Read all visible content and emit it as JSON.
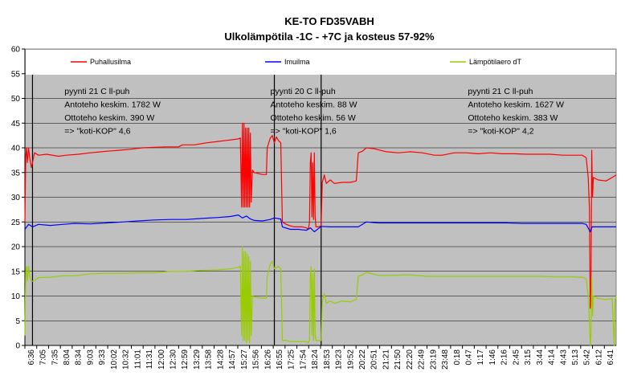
{
  "chart_data": {
    "type": "line",
    "title": "KE-TO FD35VABH",
    "subtitle": "Ulkolämpötila -1C - +7C ja kosteus 57-92%",
    "xlabel": "",
    "ylabel": "",
    "ylim": [
      0,
      60
    ],
    "yticks": [
      0,
      5,
      10,
      15,
      20,
      25,
      30,
      35,
      40,
      45,
      50,
      55,
      60
    ],
    "grid": true,
    "legend_placement": "top",
    "background": "#c0c0c0",
    "x_ticks": [
      "6:36",
      "7:05",
      "7:35",
      "8:04",
      "8:34",
      "9:03",
      "9:33",
      "10:02",
      "10:32",
      "11:01",
      "11:31",
      "12:00",
      "12:30",
      "12:59",
      "13:29",
      "13:58",
      "14:28",
      "14:57",
      "15:27",
      "15:56",
      "16:26",
      "16:55",
      "17:25",
      "17:54",
      "18:24",
      "18:53",
      "19:23",
      "19:52",
      "20:22",
      "20:51",
      "21:21",
      "21:50",
      "22:20",
      "22:49",
      "23:19",
      "23:48",
      "0:18",
      "0:47",
      "1:17",
      "1:46",
      "2:16",
      "2:45",
      "3:15",
      "3:44",
      "4:14",
      "4:43",
      "5:13",
      "5:42",
      "6:12",
      "6:41"
    ],
    "x_range_minutes": [
      396,
      1875
    ],
    "markers_minutes": [
      415,
      1020,
      1137
    ],
    "series": [
      {
        "name": "Puhallusilma",
        "color": "#ff0000",
        "points": [
          [
            396,
            25
          ],
          [
            398,
            38
          ],
          [
            400,
            40
          ],
          [
            402,
            37
          ],
          [
            405,
            40
          ],
          [
            408,
            38
          ],
          [
            412,
            36
          ],
          [
            415,
            37
          ],
          [
            420,
            39
          ],
          [
            430,
            38.5
          ],
          [
            450,
            38.7
          ],
          [
            480,
            38.3
          ],
          [
            500,
            38.5
          ],
          [
            530,
            38.7
          ],
          [
            560,
            39
          ],
          [
            600,
            39.3
          ],
          [
            630,
            39.5
          ],
          [
            660,
            39.7
          ],
          [
            690,
            40
          ],
          [
            720,
            40.1
          ],
          [
            750,
            40.2
          ],
          [
            780,
            40.2
          ],
          [
            790,
            40.6
          ],
          [
            820,
            40.6
          ],
          [
            850,
            41
          ],
          [
            880,
            41.3
          ],
          [
            900,
            41.5
          ],
          [
            930,
            41.8
          ],
          [
            935,
            42
          ],
          [
            938,
            28
          ],
          [
            940,
            45
          ],
          [
            942,
            28
          ],
          [
            944,
            45
          ],
          [
            946,
            28
          ],
          [
            948,
            44
          ],
          [
            950,
            28
          ],
          [
            952,
            44
          ],
          [
            954,
            28
          ],
          [
            956,
            44
          ],
          [
            958,
            28
          ],
          [
            960,
            43
          ],
          [
            962,
            29
          ],
          [
            965,
            35.5
          ],
          [
            970,
            35
          ],
          [
            980,
            34.8
          ],
          [
            990,
            34.6
          ],
          [
            1000,
            34.6
          ],
          [
            1002,
            40
          ],
          [
            1010,
            42
          ],
          [
            1015,
            42.5
          ],
          [
            1020,
            41
          ],
          [
            1025,
            42.2
          ],
          [
            1030,
            41.5
          ],
          [
            1036,
            41
          ],
          [
            1040,
            25
          ],
          [
            1050,
            24.5
          ],
          [
            1060,
            24.2
          ],
          [
            1070,
            24
          ],
          [
            1080,
            24
          ],
          [
            1090,
            24
          ],
          [
            1100,
            23.8
          ],
          [
            1105,
            23.5
          ],
          [
            1108,
            25
          ],
          [
            1110,
            37
          ],
          [
            1112,
            39
          ],
          [
            1114,
            26
          ],
          [
            1116,
            37
          ],
          [
            1118,
            25.5
          ],
          [
            1120,
            39
          ],
          [
            1122,
            26
          ],
          [
            1124,
            24
          ],
          [
            1130,
            24
          ],
          [
            1137,
            24.2
          ],
          [
            1140,
            33
          ],
          [
            1145,
            34.5
          ],
          [
            1150,
            32.8
          ],
          [
            1160,
            33.5
          ],
          [
            1170,
            32.8
          ],
          [
            1190,
            33
          ],
          [
            1210,
            33
          ],
          [
            1220,
            33.2
          ],
          [
            1225,
            33.3
          ],
          [
            1230,
            39
          ],
          [
            1240,
            39.3
          ],
          [
            1250,
            40
          ],
          [
            1270,
            39.8
          ],
          [
            1300,
            39.2
          ],
          [
            1330,
            39
          ],
          [
            1360,
            39.2
          ],
          [
            1390,
            39
          ],
          [
            1420,
            38.5
          ],
          [
            1440,
            38.5
          ],
          [
            1470,
            39
          ],
          [
            1500,
            39
          ],
          [
            1530,
            38.8
          ],
          [
            1560,
            39
          ],
          [
            1590,
            38.8
          ],
          [
            1620,
            38.8
          ],
          [
            1650,
            38.7
          ],
          [
            1680,
            38.7
          ],
          [
            1710,
            38.7
          ],
          [
            1740,
            38.5
          ],
          [
            1770,
            38.5
          ],
          [
            1790,
            38.5
          ],
          [
            1800,
            38
          ],
          [
            1805,
            34
          ],
          [
            1808,
            28
          ],
          [
            1810,
            7.5
          ],
          [
            1812,
            10
          ],
          [
            1814,
            39.5
          ],
          [
            1816,
            30
          ],
          [
            1818,
            34
          ],
          [
            1830,
            33.5
          ],
          [
            1850,
            33.3
          ],
          [
            1865,
            34
          ],
          [
            1875,
            34.5
          ]
        ]
      },
      {
        "name": "Imuilma",
        "color": "#0000ff",
        "points": [
          [
            396,
            23.5
          ],
          [
            405,
            24.5
          ],
          [
            415,
            24
          ],
          [
            430,
            24.5
          ],
          [
            460,
            24.3
          ],
          [
            490,
            24.5
          ],
          [
            520,
            24.7
          ],
          [
            560,
            24.6
          ],
          [
            600,
            24.8
          ],
          [
            640,
            25
          ],
          [
            680,
            25.2
          ],
          [
            720,
            25.4
          ],
          [
            760,
            25.5
          ],
          [
            800,
            25.5
          ],
          [
            840,
            25.7
          ],
          [
            880,
            25.9
          ],
          [
            910,
            26.1
          ],
          [
            930,
            26.4
          ],
          [
            940,
            25.8
          ],
          [
            950,
            26.2
          ],
          [
            960,
            25.6
          ],
          [
            970,
            25.3
          ],
          [
            990,
            25.2
          ],
          [
            1010,
            25.5
          ],
          [
            1020,
            25.8
          ],
          [
            1036,
            25.6
          ],
          [
            1040,
            24
          ],
          [
            1060,
            23.5
          ],
          [
            1080,
            23.5
          ],
          [
            1100,
            23.3
          ],
          [
            1110,
            23.8
          ],
          [
            1120,
            23
          ],
          [
            1137,
            24.1
          ],
          [
            1160,
            24
          ],
          [
            1200,
            24
          ],
          [
            1230,
            24
          ],
          [
            1250,
            25
          ],
          [
            1280,
            24.8
          ],
          [
            1320,
            24.8
          ],
          [
            1360,
            24.8
          ],
          [
            1400,
            24.8
          ],
          [
            1440,
            24.8
          ],
          [
            1480,
            24.8
          ],
          [
            1520,
            24.8
          ],
          [
            1560,
            24.8
          ],
          [
            1600,
            24.8
          ],
          [
            1640,
            24.7
          ],
          [
            1680,
            24.7
          ],
          [
            1720,
            24.7
          ],
          [
            1760,
            24.7
          ],
          [
            1790,
            24.7
          ],
          [
            1800,
            24.5
          ],
          [
            1810,
            23
          ],
          [
            1815,
            24
          ],
          [
            1840,
            24
          ],
          [
            1875,
            24
          ]
        ]
      },
      {
        "name": "Lämpötilaero dT",
        "color": "#99cc00",
        "points": [
          [
            396,
            2
          ],
          [
            398,
            15
          ],
          [
            400,
            16
          ],
          [
            402,
            13
          ],
          [
            405,
            16
          ],
          [
            408,
            14
          ],
          [
            412,
            13
          ],
          [
            415,
            13
          ],
          [
            430,
            13.7
          ],
          [
            460,
            13.8
          ],
          [
            490,
            14.1
          ],
          [
            520,
            14.1
          ],
          [
            560,
            14.5
          ],
          [
            600,
            14.6
          ],
          [
            640,
            14.6
          ],
          [
            680,
            14.7
          ],
          [
            720,
            14.7
          ],
          [
            760,
            15
          ],
          [
            800,
            15
          ],
          [
            840,
            15.2
          ],
          [
            880,
            15.3
          ],
          [
            910,
            15.5
          ],
          [
            930,
            15.8
          ],
          [
            935,
            16
          ],
          [
            938,
            2
          ],
          [
            940,
            20
          ],
          [
            942,
            1
          ],
          [
            944,
            19
          ],
          [
            946,
            1
          ],
          [
            948,
            19
          ],
          [
            950,
            0.5
          ],
          [
            952,
            18.5
          ],
          [
            954,
            1
          ],
          [
            956,
            18
          ],
          [
            958,
            0.5
          ],
          [
            960,
            17
          ],
          [
            962,
            2
          ],
          [
            965,
            10
          ],
          [
            970,
            9.8
          ],
          [
            990,
            9.6
          ],
          [
            1000,
            9.6
          ],
          [
            1002,
            14
          ],
          [
            1010,
            16.5
          ],
          [
            1015,
            17
          ],
          [
            1020,
            15.5
          ],
          [
            1030,
            16
          ],
          [
            1036,
            15.5
          ],
          [
            1040,
            1
          ],
          [
            1050,
            1
          ],
          [
            1060,
            0.8
          ],
          [
            1080,
            0.8
          ],
          [
            1100,
            0.8
          ],
          [
            1105,
            0.5
          ],
          [
            1108,
            1
          ],
          [
            1110,
            14
          ],
          [
            1112,
            16
          ],
          [
            1114,
            2
          ],
          [
            1116,
            14.5
          ],
          [
            1118,
            1
          ],
          [
            1120,
            15.5
          ],
          [
            1122,
            2
          ],
          [
            1124,
            1
          ],
          [
            1137,
            1
          ],
          [
            1140,
            9
          ],
          [
            1145,
            10.5
          ],
          [
            1150,
            8.5
          ],
          [
            1160,
            9
          ],
          [
            1170,
            8.5
          ],
          [
            1190,
            9
          ],
          [
            1210,
            8.8
          ],
          [
            1220,
            9.2
          ],
          [
            1225,
            9.3
          ],
          [
            1230,
            14
          ],
          [
            1240,
            14.3
          ],
          [
            1250,
            14.8
          ],
          [
            1280,
            14.2
          ],
          [
            1320,
            14.2
          ],
          [
            1360,
            14.3
          ],
          [
            1400,
            14
          ],
          [
            1440,
            14
          ],
          [
            1480,
            14
          ],
          [
            1520,
            14
          ],
          [
            1560,
            14
          ],
          [
            1600,
            14
          ],
          [
            1640,
            14
          ],
          [
            1680,
            14
          ],
          [
            1720,
            13.9
          ],
          [
            1760,
            13.9
          ],
          [
            1790,
            13.8
          ],
          [
            1800,
            13.5
          ],
          [
            1805,
            10
          ],
          [
            1808,
            5
          ],
          [
            1810,
            0
          ],
          [
            1812,
            2
          ],
          [
            1814,
            14
          ],
          [
            1816,
            6
          ],
          [
            1818,
            10
          ],
          [
            1830,
            9.5
          ],
          [
            1850,
            9.3
          ],
          [
            1865,
            9.5
          ],
          [
            1870,
            0
          ],
          [
            1872,
            9
          ],
          [
            1875,
            10
          ]
        ]
      }
    ],
    "annotations": [
      {
        "name": "period-1",
        "x_minutes": 495,
        "lines": [
          "pyynti 21 C ll-puh",
          "Antoteho keskim. 1782 W",
          "Ottoteho keskim. 390 W",
          "=> \"koti-KOP\" 4,6"
        ]
      },
      {
        "name": "period-2",
        "x_minutes": 1010,
        "lines": [
          "pyynti 20 C ll-puh",
          "Antoteho keskim. 88 W",
          "Ottoteho keskim. 56 W",
          "=> \"koti-KOP\" 1,6"
        ]
      },
      {
        "name": "period-3",
        "x_minutes": 1504,
        "lines": [
          "pyynti 21 C ll-puh",
          "Antoteho keskim. 1627 W",
          "Ottoteho keskim. 383 W",
          "=> \"koti-KOP\" 4,2"
        ]
      }
    ]
  }
}
